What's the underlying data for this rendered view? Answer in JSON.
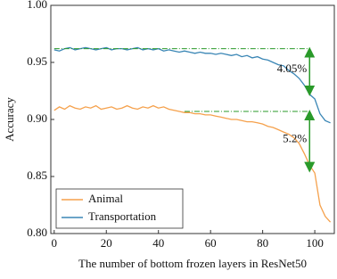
{
  "chart_data": {
    "type": "line",
    "xlabel": "The number of bottom frozen layers in ResNet50",
    "ylabel": "Accuracy",
    "x": [
      0,
      2,
      4,
      6,
      8,
      10,
      12,
      14,
      16,
      18,
      20,
      22,
      24,
      26,
      28,
      30,
      32,
      34,
      36,
      38,
      40,
      42,
      44,
      46,
      48,
      50,
      52,
      54,
      56,
      58,
      60,
      62,
      64,
      66,
      68,
      70,
      72,
      74,
      76,
      78,
      80,
      82,
      84,
      86,
      88,
      90,
      92,
      94,
      96,
      98,
      100,
      102,
      104,
      106
    ],
    "series": [
      {
        "name": "Animal",
        "color": "#f5a14c",
        "values": [
          0.908,
          0.911,
          0.909,
          0.912,
          0.91,
          0.909,
          0.911,
          0.91,
          0.912,
          0.909,
          0.91,
          0.911,
          0.909,
          0.91,
          0.912,
          0.91,
          0.909,
          0.911,
          0.91,
          0.912,
          0.91,
          0.911,
          0.909,
          0.908,
          0.907,
          0.906,
          0.906,
          0.905,
          0.905,
          0.904,
          0.904,
          0.903,
          0.902,
          0.901,
          0.9,
          0.9,
          0.899,
          0.898,
          0.898,
          0.897,
          0.896,
          0.894,
          0.893,
          0.891,
          0.889,
          0.887,
          0.884,
          0.879,
          0.87,
          0.86,
          0.853,
          0.825,
          0.815,
          0.81
        ]
      },
      {
        "name": "Transportation",
        "color": "#3a86b5",
        "values": [
          0.961,
          0.96,
          0.962,
          0.963,
          0.961,
          0.962,
          0.963,
          0.962,
          0.961,
          0.962,
          0.963,
          0.961,
          0.962,
          0.962,
          0.961,
          0.962,
          0.963,
          0.961,
          0.962,
          0.961,
          0.962,
          0.96,
          0.961,
          0.96,
          0.959,
          0.96,
          0.959,
          0.958,
          0.959,
          0.958,
          0.958,
          0.957,
          0.958,
          0.957,
          0.956,
          0.957,
          0.955,
          0.956,
          0.954,
          0.955,
          0.953,
          0.952,
          0.95,
          0.948,
          0.947,
          0.943,
          0.94,
          0.936,
          0.93,
          0.922,
          0.918,
          0.905,
          0.899,
          0.897
        ]
      }
    ],
    "annotations": [
      {
        "text": "4.05%",
        "x": 98,
        "from": 0.962,
        "to": 0.922,
        "line_start": 0
      },
      {
        "text": "5.2%",
        "x": 98,
        "from": 0.907,
        "to": 0.855,
        "line_start": 50
      }
    ],
    "annotation_color": "#2a9a2a",
    "xlim": [
      -1.3,
      107.5
    ],
    "ylim": [
      0.8,
      1.0
    ],
    "xticks": [
      0,
      20,
      40,
      60,
      80,
      100
    ],
    "yticks": [
      {
        "value": 0.8,
        "label": "0.80"
      },
      0.85,
      {
        "value": 0.9,
        "label": "0.90"
      },
      0.95,
      {
        "value": 1.0,
        "label": "1.00"
      }
    ],
    "legend": "lower left"
  }
}
